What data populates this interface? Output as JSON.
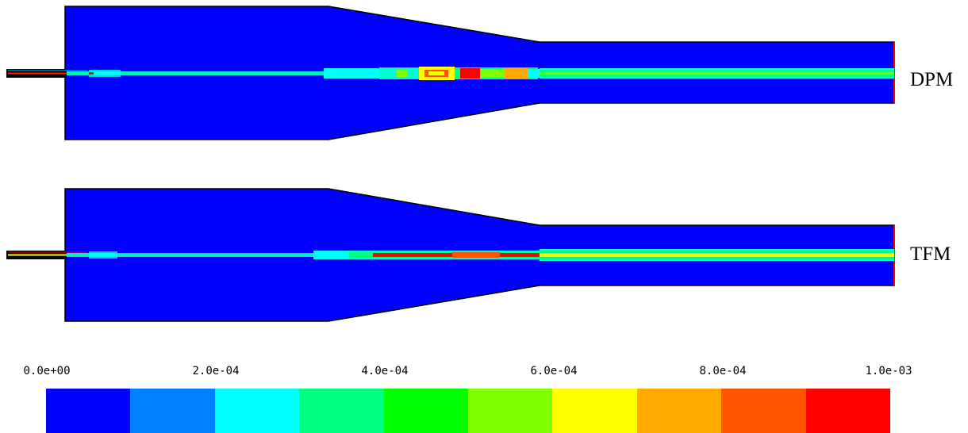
{
  "panels": [
    {
      "label": "DPM"
    },
    {
      "label": "TFM"
    }
  ],
  "legend": {
    "tick_labels": [
      "0.0e+00",
      "2.0e-04",
      "4.0e-04",
      "6.0e-04",
      "8.0e-04",
      "1.0e-03"
    ],
    "colors": [
      "#0000ff",
      "#0080ff",
      "#00ffff",
      "#00ff80",
      "#00ff00",
      "#80ff00",
      "#ffff00",
      "#ffaa00",
      "#ff5500",
      "#ff0000"
    ]
  },
  "palette": {
    "domain_fill": "#0000ff",
    "outline": "#000000",
    "nozzle_fill": "#000000",
    "outlet_edge": "#ff0000"
  }
}
